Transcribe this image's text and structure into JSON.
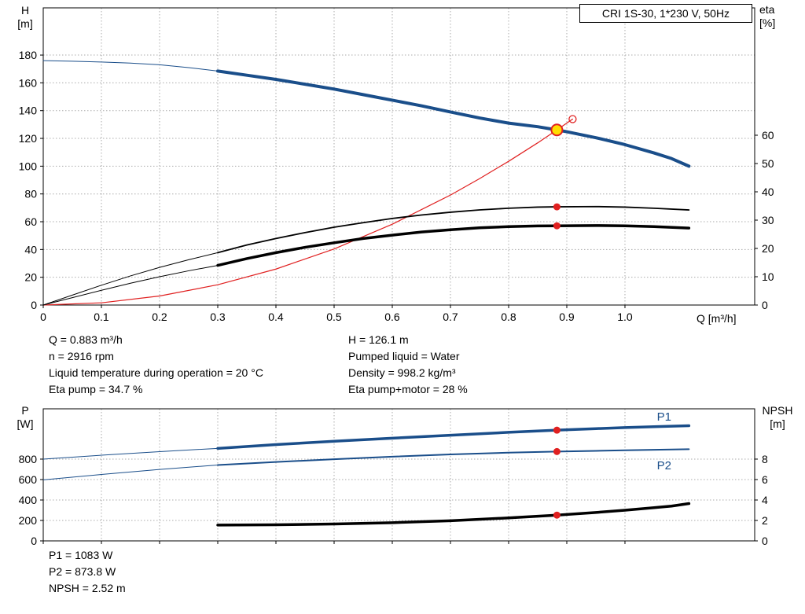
{
  "app": {
    "title_box": "CRI 1S-30, 1*230 V, 50Hz"
  },
  "colors": {
    "curve_blue": "#1a4e8a",
    "marker_red": "#e02020",
    "duty_yellow": "#ffdd00",
    "grid": "#ababab"
  },
  "axis_titles": {
    "top_left_1": "H",
    "top_left_2": "[m]",
    "top_right_1": "eta",
    "top_right_2": "[%]",
    "x": "Q [m³/h]",
    "bottom_left_1": "P",
    "bottom_left_2": "[W]",
    "bottom_right_1": "NPSH",
    "bottom_right_2": "[m]"
  },
  "info_top": {
    "left": [
      "Q = 0.883 m³/h",
      "n = 2916 rpm",
      "Liquid temperature during operation = 20 °C",
      "Eta pump = 34.7 %"
    ],
    "right": [
      "H = 126.1 m",
      "Pumped liquid = Water",
      "Density = 998.2 kg/m³",
      "Eta pump+motor = 28 %"
    ]
  },
  "info_bottom": [
    "P1 = 1083 W",
    "P2 = 873.8 W",
    "NPSH = 2.52 m"
  ],
  "operating_point": {
    "Q_m3h": 0.883,
    "H_m": 126.1,
    "eta_pump_pct": 34.7,
    "eta_pump_motor_pct": 28,
    "P1_W": 1083,
    "P2_W": 873.8,
    "NPSH_m": 2.52,
    "n_rpm": 2916
  },
  "chart_data": [
    {
      "type": "line",
      "name": "qh-eta-chart",
      "title": "CRI 1S-30, 1*230 V, 50Hz",
      "grid": true,
      "x_axis": {
        "label": "Q [m³/h]",
        "range": [
          0,
          1.223
        ],
        "ticks": [
          0,
          0.1,
          0.2,
          0.3,
          0.4,
          0.5,
          0.6,
          0.7,
          0.8,
          0.9,
          1.0
        ],
        "tick_labels": [
          "0",
          "0.1",
          "0.2",
          "0.3",
          "0.4",
          "0.5",
          "0.6",
          "0.7",
          "0.8",
          "0.9",
          "1.0"
        ],
        "show_tick_labels": true
      },
      "y_left": {
        "label": "H [m]",
        "range": [
          0,
          214
        ],
        "ticks": [
          0,
          20,
          40,
          60,
          80,
          100,
          120,
          140,
          160,
          180
        ]
      },
      "y_right": {
        "label": "eta [%]",
        "range": [
          0,
          105
        ],
        "ticks": [
          0,
          10,
          20,
          30,
          40,
          50,
          60
        ]
      },
      "series": [
        {
          "name": "qh-curve-extension",
          "axis": "left",
          "color": "#1a4e8a",
          "width": 1,
          "points": [
            [
              0,
              176
            ],
            [
              0.05,
              175.6
            ],
            [
              0.1,
              175
            ],
            [
              0.15,
              174.2
            ],
            [
              0.2,
              173
            ],
            [
              0.25,
              171
            ],
            [
              0.3,
              168.5
            ]
          ]
        },
        {
          "name": "qh-curve",
          "axis": "left",
          "color": "#1a4e8a",
          "width": 4,
          "points": [
            [
              0.3,
              168.5
            ],
            [
              0.35,
              165.5
            ],
            [
              0.4,
              162.5
            ],
            [
              0.45,
              159
            ],
            [
              0.5,
              155.5
            ],
            [
              0.55,
              151.5
            ],
            [
              0.6,
              147.5
            ],
            [
              0.65,
              143.5
            ],
            [
              0.7,
              139
            ],
            [
              0.75,
              134.7
            ],
            [
              0.8,
              131
            ],
            [
              0.85,
              128.4
            ],
            [
              0.883,
              126.1
            ],
            [
              0.9,
              124.8
            ],
            [
              0.95,
              120.5
            ],
            [
              1.0,
              115.5
            ],
            [
              1.05,
              109.5
            ],
            [
              1.08,
              105.5
            ],
            [
              1.11,
              100
            ]
          ]
        },
        {
          "name": "system-curve",
          "axis": "left",
          "color": "#e02020",
          "width": 1.2,
          "points": [
            [
              0,
              0
            ],
            [
              0.1,
              1.6
            ],
            [
              0.2,
              6.5
            ],
            [
              0.3,
              14.6
            ],
            [
              0.4,
              25.9
            ],
            [
              0.5,
              40.4
            ],
            [
              0.6,
              58.2
            ],
            [
              0.7,
              79.2
            ],
            [
              0.75,
              91
            ],
            [
              0.8,
              103.5
            ],
            [
              0.85,
              116.8
            ],
            [
              0.883,
              126.1
            ],
            [
              0.91,
              133.9
            ]
          ]
        },
        {
          "name": "eta-pump-extension",
          "axis": "right",
          "color": "#000000",
          "width": 1,
          "points": [
            [
              0,
              0
            ],
            [
              0.05,
              3.5
            ],
            [
              0.1,
              7
            ],
            [
              0.15,
              10.3
            ],
            [
              0.2,
              13.3
            ],
            [
              0.25,
              16
            ],
            [
              0.3,
              18.5
            ]
          ]
        },
        {
          "name": "eta-pump-curve",
          "axis": "right",
          "color": "#000000",
          "width": 1.8,
          "points": [
            [
              0.3,
              18.5
            ],
            [
              0.35,
              21.2
            ],
            [
              0.4,
              23.5
            ],
            [
              0.45,
              25.6
            ],
            [
              0.5,
              27.5
            ],
            [
              0.55,
              29.1
            ],
            [
              0.6,
              30.6
            ],
            [
              0.65,
              31.8
            ],
            [
              0.7,
              32.8
            ],
            [
              0.75,
              33.6
            ],
            [
              0.8,
              34.2
            ],
            [
              0.85,
              34.6
            ],
            [
              0.883,
              34.7
            ],
            [
              0.95,
              34.8
            ],
            [
              1.0,
              34.6
            ],
            [
              1.05,
              34.2
            ],
            [
              1.11,
              33.6
            ]
          ]
        },
        {
          "name": "eta-pump-motor-extension",
          "axis": "right",
          "color": "#000000",
          "width": 1,
          "points": [
            [
              0,
              0
            ],
            [
              0.05,
              2.6
            ],
            [
              0.1,
              5.2
            ],
            [
              0.15,
              7.7
            ],
            [
              0.2,
              10
            ],
            [
              0.25,
              12.1
            ],
            [
              0.3,
              14
            ]
          ]
        },
        {
          "name": "eta-pump-motor-curve",
          "axis": "right",
          "color": "#000000",
          "width": 3.5,
          "points": [
            [
              0.3,
              14
            ],
            [
              0.35,
              16.4
            ],
            [
              0.4,
              18.5
            ],
            [
              0.45,
              20.4
            ],
            [
              0.5,
              22
            ],
            [
              0.55,
              23.5
            ],
            [
              0.6,
              24.7
            ],
            [
              0.65,
              25.8
            ],
            [
              0.7,
              26.6
            ],
            [
              0.75,
              27.3
            ],
            [
              0.8,
              27.7
            ],
            [
              0.85,
              27.95
            ],
            [
              0.883,
              28
            ],
            [
              0.95,
              28.1
            ],
            [
              1.0,
              28
            ],
            [
              1.05,
              27.7
            ],
            [
              1.11,
              27.2
            ]
          ]
        }
      ],
      "markers": [
        {
          "name": "duty-point",
          "x": 0.883,
          "y": 126.1,
          "axis": "left",
          "r": 7,
          "fill": "#ffdd00",
          "stroke": "#e02020",
          "sw": 2
        },
        {
          "name": "open-point",
          "x": 0.91,
          "y": 133.9,
          "axis": "left",
          "r": 4.5,
          "fill": "none",
          "stroke": "#e02020",
          "sw": 1.3
        },
        {
          "name": "eta-pump-point",
          "x": 0.883,
          "y": 34.7,
          "axis": "right",
          "r": 4.5,
          "fill": "#e02020",
          "stroke": "none",
          "sw": 0
        },
        {
          "name": "eta-pump-motor-point",
          "x": 0.883,
          "y": 28,
          "axis": "right",
          "r": 4.5,
          "fill": "#e02020",
          "stroke": "none",
          "sw": 0
        }
      ]
    },
    {
      "type": "line",
      "name": "power-npsh-chart",
      "grid": true,
      "x_axis": {
        "label": "",
        "range": [
          0,
          1.223
        ],
        "ticks": [
          0,
          0.1,
          0.2,
          0.3,
          0.4,
          0.5,
          0.6,
          0.7,
          0.8,
          0.9,
          1.0
        ],
        "show_tick_labels": false
      },
      "y_left": {
        "label": "P [W]",
        "range": [
          0,
          1292
        ],
        "ticks": [
          0,
          200,
          400,
          600,
          800
        ]
      },
      "y_right": {
        "label": "NPSH [m]",
        "range": [
          0,
          12.92
        ],
        "ticks": [
          0,
          2,
          4,
          6,
          8
        ]
      },
      "series": [
        {
          "name": "p1-curve-extension",
          "axis": "left",
          "color": "#1a4e8a",
          "width": 1,
          "points": [
            [
              0,
              800
            ],
            [
              0.1,
              838
            ],
            [
              0.2,
              873
            ],
            [
              0.3,
              905
            ]
          ]
        },
        {
          "name": "p1-curve",
          "axis": "left",
          "color": "#1a4e8a",
          "width": 3.5,
          "label": "P1",
          "label_pos": [
            1.055,
            1175
          ],
          "points": [
            [
              0.3,
              905
            ],
            [
              0.4,
              942
            ],
            [
              0.5,
              975
            ],
            [
              0.6,
              1005
            ],
            [
              0.7,
              1033
            ],
            [
              0.8,
              1062
            ],
            [
              0.883,
              1083
            ],
            [
              0.95,
              1098
            ],
            [
              1.0,
              1108
            ],
            [
              1.05,
              1117
            ],
            [
              1.11,
              1127
            ]
          ]
        },
        {
          "name": "p2-curve-extension",
          "axis": "left",
          "color": "#1a4e8a",
          "width": 1,
          "points": [
            [
              0,
              597
            ],
            [
              0.1,
              650
            ],
            [
              0.2,
              699
            ],
            [
              0.3,
              742
            ]
          ]
        },
        {
          "name": "p2-curve",
          "axis": "left",
          "color": "#1a4e8a",
          "width": 2,
          "label": "P2",
          "label_pos": [
            1.055,
            700
          ],
          "points": [
            [
              0.3,
              742
            ],
            [
              0.4,
              772
            ],
            [
              0.5,
              799
            ],
            [
              0.6,
              824
            ],
            [
              0.7,
              846
            ],
            [
              0.8,
              863
            ],
            [
              0.883,
              873.8
            ],
            [
              0.95,
              881
            ],
            [
              1.0,
              886
            ],
            [
              1.05,
              891
            ],
            [
              1.11,
              897
            ]
          ]
        },
        {
          "name": "npsh-curve",
          "axis": "right",
          "color": "#000000",
          "width": 3.5,
          "points": [
            [
              0.3,
              1.55
            ],
            [
              0.4,
              1.58
            ],
            [
              0.5,
              1.65
            ],
            [
              0.6,
              1.78
            ],
            [
              0.7,
              1.97
            ],
            [
              0.8,
              2.25
            ],
            [
              0.883,
              2.52
            ],
            [
              0.95,
              2.78
            ],
            [
              1.0,
              3.0
            ],
            [
              1.05,
              3.25
            ],
            [
              1.08,
              3.4
            ],
            [
              1.11,
              3.65
            ]
          ]
        }
      ],
      "markers": [
        {
          "name": "p1-point",
          "x": 0.883,
          "y": 1083,
          "axis": "left",
          "r": 4.5,
          "fill": "#e02020",
          "stroke": "none",
          "sw": 0
        },
        {
          "name": "p2-point",
          "x": 0.883,
          "y": 873.8,
          "axis": "left",
          "r": 4.5,
          "fill": "#e02020",
          "stroke": "none",
          "sw": 0
        },
        {
          "name": "npsh-point",
          "x": 0.883,
          "y": 2.52,
          "axis": "right",
          "r": 4.5,
          "fill": "#e02020",
          "stroke": "none",
          "sw": 0
        }
      ]
    }
  ]
}
